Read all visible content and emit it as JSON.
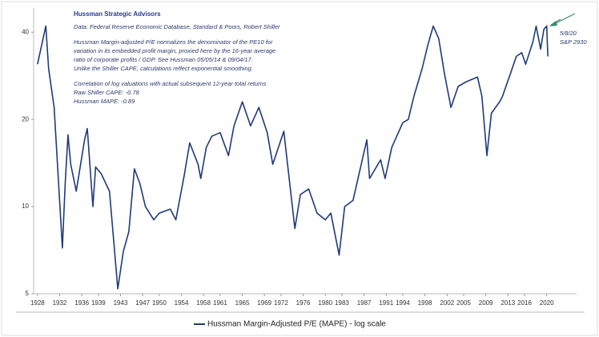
{
  "chart_data": {
    "type": "line",
    "notes": [
      "Hussman Strategic Advisors",
      "Data: Federal Reserve Economic Database, Standard & Poors, Robert Shiller",
      "Hussman Margin-adjusted P/E normalizes the denominator of the PE10 for",
      "variation in its embedded profit margin, proxied here by the 16-year average",
      "ratio of corporate profits / GDP. See Hussman 05/05/14 & 09/04/17.",
      "Unlike the Shiller CAPE, calculations reflect exponential smoothing.",
      "Correlation of log valuations with actual subsequent 12-year total returns",
      "Raw Shiller CAPE: -0.78",
      "Hussman MAPE: -0.89"
    ],
    "annotation": [
      "5/8/20",
      "S&P 2930"
    ],
    "x": [
      1928,
      1929.5,
      1930,
      1931,
      1932.5,
      1933,
      1933.5,
      1934,
      1935,
      1936.5,
      1937,
      1938,
      1938.5,
      1939.5,
      1941,
      1942.5,
      1943.5,
      1944.5,
      1945.5,
      1946.5,
      1947.5,
      1949,
      1950,
      1952,
      1953,
      1954.5,
      1955.5,
      1957,
      1957.5,
      1958.5,
      1959.5,
      1961,
      1962.5,
      1963.5,
      1965,
      1966.5,
      1968,
      1969.5,
      1970.5,
      1972.5,
      1974.5,
      1975.5,
      1977,
      1978.5,
      1980,
      1981,
      1982.5,
      1983.5,
      1985,
      1986.5,
      1987.5,
      1988,
      1990,
      1990.8,
      1992,
      1994,
      1995,
      1996,
      1997.5,
      1998.5,
      1999.5,
      2000.5,
      2001.5,
      2002.7,
      2004,
      2005.5,
      2007.5,
      2008.3,
      2009.2,
      2010,
      2011.5,
      2012,
      2013.5,
      2014.5,
      2015.5,
      2016.2,
      2017.5,
      2018.1,
      2018.9,
      2019.5,
      2020.0,
      2020.2
    ],
    "series": [
      {
        "name": "Hussman Margin-Adjusted P/E (MAPE) - log scale",
        "color": "#1f3a78",
        "values": [
          31,
          42,
          30,
          22,
          7.2,
          12,
          17.7,
          14,
          11.3,
          17,
          18.6,
          10,
          13.7,
          13,
          11.3,
          5.2,
          7,
          8.2,
          13.5,
          12,
          10,
          9,
          9.5,
          9.8,
          9,
          12.8,
          16.6,
          14,
          12.5,
          16,
          17.5,
          18,
          15,
          19,
          23,
          19,
          22,
          18,
          14,
          18.2,
          8.4,
          11,
          11.5,
          9.5,
          9,
          9.5,
          6.8,
          10,
          10.5,
          14,
          17,
          12.5,
          14.5,
          12.5,
          16,
          19.5,
          20,
          24,
          30,
          36,
          42,
          38,
          29,
          22,
          26,
          27,
          28,
          24,
          15,
          21,
          23,
          24,
          29,
          33,
          34,
          31,
          37,
          42,
          35,
          41,
          42,
          33
        ]
      }
    ],
    "xlim": [
      1927.3,
      2025.4
    ],
    "xticks": [
      1928,
      1932,
      1936,
      1939,
      1943,
      1947,
      1950,
      1954,
      1958,
      1961,
      1965,
      1969,
      1972,
      1976,
      1980,
      1983,
      1987,
      1991,
      1994,
      1998,
      2002,
      2005,
      2009,
      2013,
      2016,
      2020
    ],
    "ylim": [
      5,
      48.5
    ],
    "yticks": [
      5,
      10,
      20,
      40
    ],
    "ylog": true
  }
}
